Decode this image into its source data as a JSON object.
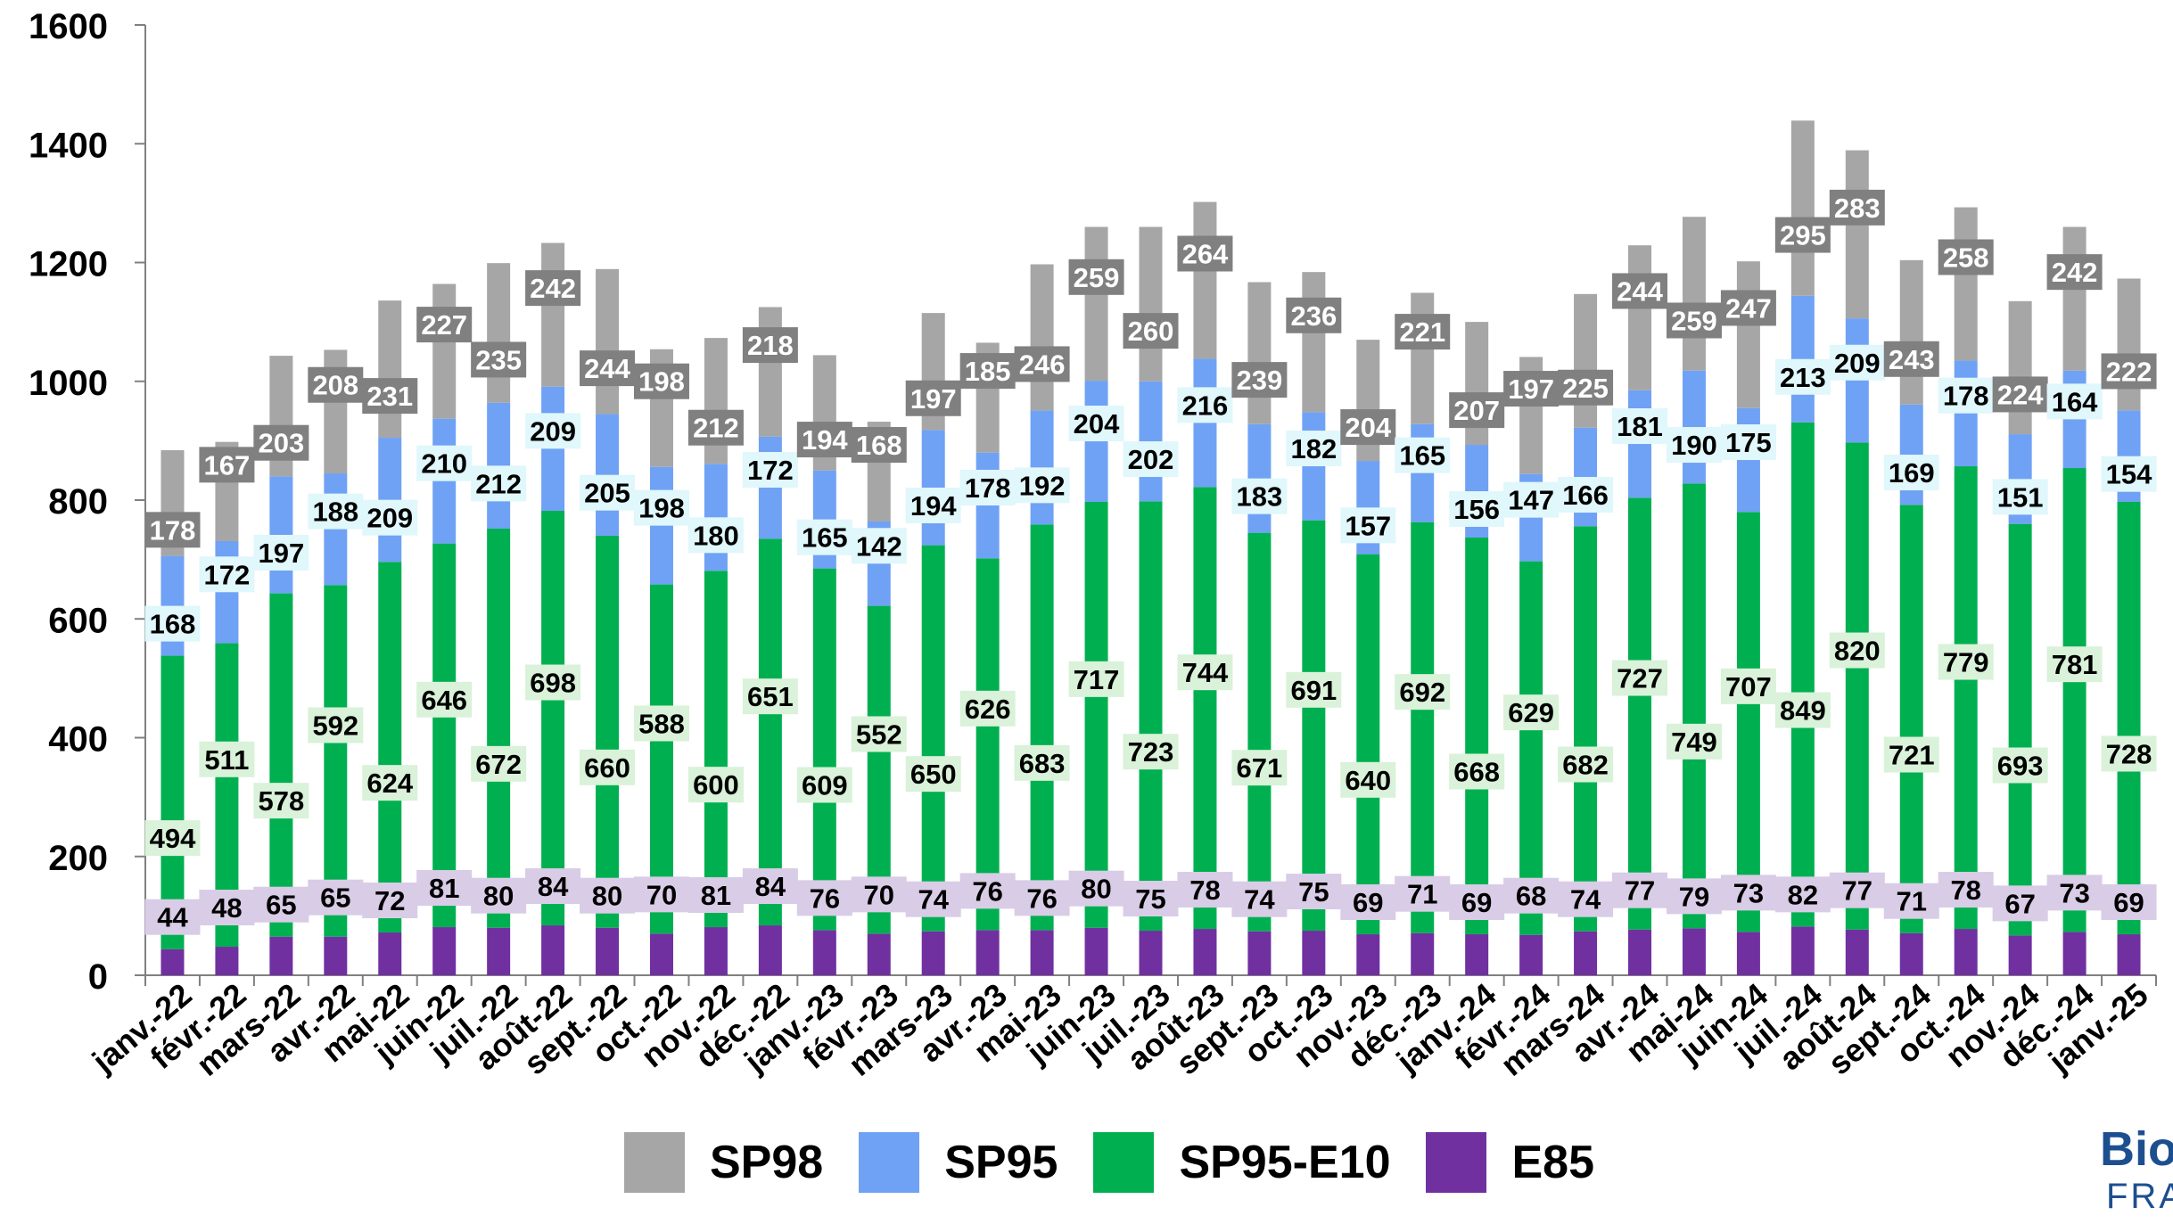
{
  "chart_data": {
    "type": "bar",
    "stacked": true,
    "categories": [
      "janv.-22",
      "févr.-22",
      "mars-22",
      "avr.-22",
      "mai-22",
      "juin-22",
      "juil.-22",
      "août-22",
      "sept.-22",
      "oct.-22",
      "nov.-22",
      "déc.-22",
      "janv.-23",
      "févr.-23",
      "mars-23",
      "avr.-23",
      "mai-23",
      "juin-23",
      "juil.-23",
      "août-23",
      "sept.-23",
      "oct.-23",
      "nov.-23",
      "déc.-23",
      "janv.-24",
      "févr.-24",
      "mars-24",
      "avr.-24",
      "mai-24",
      "juin-24",
      "juil.-24",
      "août-24",
      "sept.-24",
      "oct.-24",
      "nov.-24",
      "déc.-24",
      "janv.-25"
    ],
    "series": [
      {
        "name": "E85",
        "color": "#7030a0",
        "label_bg": "#d9cce6",
        "values": [
          44,
          48,
          65,
          65,
          72,
          81,
          80,
          84,
          80,
          70,
          81,
          84,
          76,
          70,
          74,
          76,
          76,
          80,
          75,
          78,
          74,
          75,
          69,
          71,
          69,
          68,
          74,
          77,
          79,
          73,
          82,
          77,
          71,
          78,
          67,
          73,
          69
        ]
      },
      {
        "name": "SP95-E10",
        "color": "#00b050",
        "label_bg": "#d9f2d9",
        "values": [
          494,
          511,
          578,
          592,
          624,
          646,
          672,
          698,
          660,
          588,
          600,
          651,
          609,
          552,
          650,
          626,
          683,
          717,
          723,
          744,
          671,
          691,
          640,
          692,
          668,
          629,
          682,
          727,
          749,
          707,
          849,
          820,
          721,
          779,
          693,
          781,
          728
        ]
      },
      {
        "name": "SP95",
        "color": "#6fa2f5",
        "label_bg": "#e0f7fb",
        "values": [
          168,
          172,
          197,
          188,
          209,
          210,
          212,
          209,
          205,
          198,
          180,
          172,
          165,
          142,
          194,
          178,
          192,
          204,
          202,
          216,
          183,
          182,
          157,
          165,
          156,
          147,
          166,
          181,
          190,
          175,
          213,
          209,
          169,
          178,
          151,
          164,
          154
        ]
      },
      {
        "name": "SP98",
        "color": "#a6a6a6",
        "label_bg": "#808080",
        "values": [
          178,
          167,
          203,
          208,
          231,
          227,
          235,
          242,
          244,
          198,
          212,
          218,
          194,
          168,
          197,
          185,
          246,
          259,
          260,
          264,
          239,
          236,
          204,
          221,
          207,
          197,
          225,
          244,
          259,
          247,
          295,
          283,
          243,
          258,
          224,
          242,
          222
        ]
      }
    ],
    "ylim": [
      0,
      1600
    ],
    "yticks": [
      0,
      200,
      400,
      600,
      800,
      1000,
      1200,
      1400,
      1600
    ],
    "title": "",
    "xlabel": "",
    "ylabel": "",
    "grid": false,
    "legend": "bottom"
  },
  "legend": [
    {
      "label": "SP98",
      "color": "#a6a6a6"
    },
    {
      "label": "SP95",
      "color": "#6fa2f5"
    },
    {
      "label": "SP95-E10",
      "color": "#00b050"
    },
    {
      "label": "E85",
      "color": "#7030a0"
    }
  ],
  "logo": {
    "line1": "Bio",
    "line2": "FRA"
  }
}
